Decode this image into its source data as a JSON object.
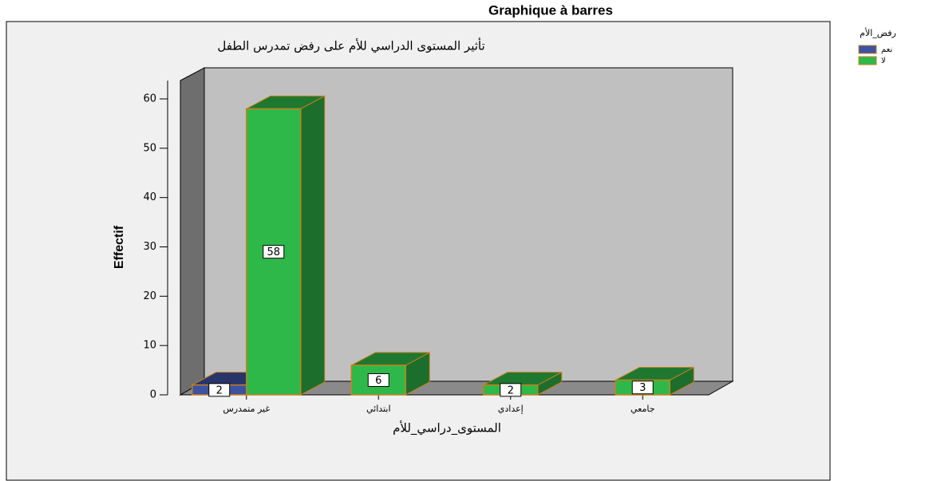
{
  "chart_data": {
    "type": "bar3d",
    "title": "Graphique à barres",
    "subtitle": "تأثير المستوى الدراسي للأم على رفض تمدرس الطفل",
    "x_label": "المستوى_دراسي_للأم",
    "y_label": "Effectif",
    "legend_title": "رفض_الأم",
    "legend_position": "top-right",
    "categories": [
      "غير متمدرس",
      "ابتدائي",
      "إعدادي",
      "جامعي"
    ],
    "series": [
      {
        "name": "نعم",
        "color": "#3d52a3",
        "values": [
          2,
          null,
          null,
          null
        ]
      },
      {
        "name": "لا",
        "color": "#2fb84a",
        "values": [
          58,
          6,
          2,
          3
        ]
      }
    ],
    "ylim": [
      0,
      60
    ],
    "yticks": [
      0,
      10,
      20,
      30,
      40,
      50,
      60
    ]
  }
}
